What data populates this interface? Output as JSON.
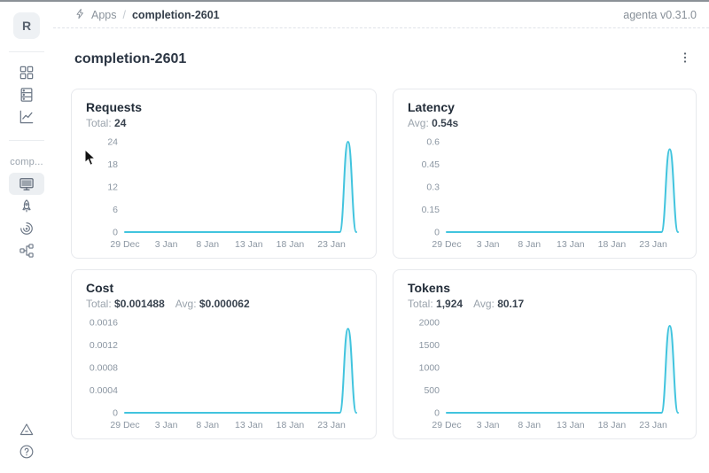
{
  "app": {
    "version_label": "agenta v0.31.0"
  },
  "header": {
    "breadcrumb": {
      "apps_label": "Apps",
      "separator": "/",
      "current": "completion-2601"
    }
  },
  "sidebar": {
    "avatar_letter": "R",
    "workspace_label": "comp...",
    "top_nav_icons": [
      "grid-icon",
      "database-icon",
      "line-chart-icon"
    ],
    "app_nav_icons": [
      "monitor-icon",
      "rocket-icon",
      "swirl-icon",
      "trace-tree-icon"
    ],
    "bottom_icons": [
      "triangle-alert-icon",
      "help-circle-icon"
    ],
    "selected_item": "monitor"
  },
  "page": {
    "title": "completion-2601"
  },
  "colors": {
    "accent_line": "#41c4de",
    "accent_fill_top": "rgba(65,196,222,0.18)",
    "accent_fill_bottom": "rgba(65,196,222,0.02)",
    "axis_text": "#8b96a2",
    "card_border": "#e7e9ed",
    "selected_bg": "#eceff2"
  },
  "chart_data": [
    {
      "type": "line",
      "metric": "requests",
      "title": "Requests",
      "stats": [
        {
          "label": "Total:",
          "value": "24"
        }
      ],
      "x_labels": [
        "29 Dec",
        "3 Jan",
        "8 Jan",
        "13 Jan",
        "18 Jan",
        "23 Jan"
      ],
      "xtick_indices": [
        0,
        5,
        10,
        15,
        20,
        25
      ],
      "values": [
        0,
        0,
        0,
        0,
        0,
        0,
        0,
        0,
        0,
        0,
        0,
        0,
        0,
        0,
        0,
        0,
        0,
        0,
        0,
        0,
        0,
        0,
        0,
        0,
        0,
        0,
        0,
        24,
        0
      ],
      "peak_value": 24,
      "ylim": [
        0,
        24
      ],
      "ytick_values": [
        0,
        6,
        12,
        18,
        24
      ],
      "ytick_labels": [
        "0",
        "6",
        "12",
        "18",
        "24"
      ],
      "xlabel": "",
      "ylabel": "",
      "grid": false,
      "legend": "none"
    },
    {
      "type": "line",
      "metric": "latency",
      "title": "Latency",
      "stats": [
        {
          "label": "Avg:",
          "value": "0.54s"
        }
      ],
      "x_labels": [
        "29 Dec",
        "3 Jan",
        "8 Jan",
        "13 Jan",
        "18 Jan",
        "23 Jan"
      ],
      "xtick_indices": [
        0,
        5,
        10,
        15,
        20,
        25
      ],
      "values": [
        0,
        0,
        0,
        0,
        0,
        0,
        0,
        0,
        0,
        0,
        0,
        0,
        0,
        0,
        0,
        0,
        0,
        0,
        0,
        0,
        0,
        0,
        0,
        0,
        0,
        0,
        0,
        0.55,
        0
      ],
      "peak_value": 0.55,
      "ylim": [
        0,
        0.6
      ],
      "ytick_values": [
        0,
        0.15,
        0.3,
        0.45,
        0.6
      ],
      "ytick_labels": [
        "0",
        "0.15",
        "0.3",
        "0.45",
        "0.6"
      ],
      "xlabel": "",
      "ylabel": "",
      "grid": false,
      "legend": "none"
    },
    {
      "type": "line",
      "metric": "cost",
      "title": "Cost",
      "stats": [
        {
          "label": "Total:",
          "value": "$0.001488"
        },
        {
          "label": "Avg:",
          "value": "$0.000062"
        }
      ],
      "x_labels": [
        "29 Dec",
        "3 Jan",
        "8 Jan",
        "13 Jan",
        "18 Jan",
        "23 Jan"
      ],
      "xtick_indices": [
        0,
        5,
        10,
        15,
        20,
        25
      ],
      "values": [
        0,
        0,
        0,
        0,
        0,
        0,
        0,
        0,
        0,
        0,
        0,
        0,
        0,
        0,
        0,
        0,
        0,
        0,
        0,
        0,
        0,
        0,
        0,
        0,
        0,
        0,
        0,
        0.001488,
        0
      ],
      "peak_value": 0.001488,
      "ylim": [
        0,
        0.0016
      ],
      "ytick_values": [
        0,
        0.0004,
        0.0008,
        0.0012,
        0.0016
      ],
      "ytick_labels": [
        "0",
        "0.0004",
        "0.0008",
        "0.0012",
        "0.0016"
      ],
      "xlabel": "",
      "ylabel": "",
      "grid": false,
      "legend": "none"
    },
    {
      "type": "line",
      "metric": "tokens",
      "title": "Tokens",
      "stats": [
        {
          "label": "Total:",
          "value": "1,924"
        },
        {
          "label": "Avg:",
          "value": "80.17"
        }
      ],
      "x_labels": [
        "29 Dec",
        "3 Jan",
        "8 Jan",
        "13 Jan",
        "18 Jan",
        "23 Jan"
      ],
      "xtick_indices": [
        0,
        5,
        10,
        15,
        20,
        25
      ],
      "values": [
        0,
        0,
        0,
        0,
        0,
        0,
        0,
        0,
        0,
        0,
        0,
        0,
        0,
        0,
        0,
        0,
        0,
        0,
        0,
        0,
        0,
        0,
        0,
        0,
        0,
        0,
        0,
        1924,
        0
      ],
      "peak_value": 1924,
      "ylim": [
        0,
        2000
      ],
      "ytick_values": [
        0,
        500,
        1000,
        1500,
        2000
      ],
      "ytick_labels": [
        "0",
        "500",
        "1000",
        "1500",
        "2000"
      ],
      "xlabel": "",
      "ylabel": "",
      "grid": false,
      "legend": "none"
    }
  ]
}
